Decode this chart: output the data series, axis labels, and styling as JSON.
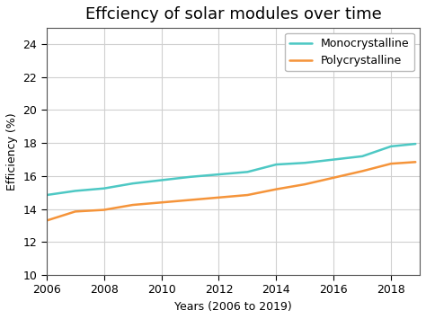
{
  "title": "Effciency of solar modules over time",
  "xlabel": "Years (2006 to 2019)",
  "ylabel": "Efficiency (%)",
  "xlim": [
    2006,
    2019
  ],
  "ylim": [
    10,
    25
  ],
  "yticks": [
    10,
    12,
    14,
    16,
    18,
    20,
    22,
    24
  ],
  "xticks": [
    2006,
    2008,
    2010,
    2012,
    2014,
    2016,
    2018
  ],
  "mono_color": "#4dc8c4",
  "poly_color": "#f5943a",
  "mono_label": "Monocrystalline",
  "poly_label": "Polycrystalline",
  "mono_x": [
    2006,
    2007,
    2008,
    2009,
    2010,
    2011,
    2012,
    2013,
    2014,
    2015,
    2016,
    2017,
    2018,
    2018.85
  ],
  "mono_y": [
    14.85,
    15.1,
    15.25,
    15.55,
    15.75,
    15.95,
    16.1,
    16.25,
    16.7,
    16.8,
    17.0,
    17.2,
    17.8,
    17.95
  ],
  "poly_x": [
    2006,
    2007,
    2008,
    2009,
    2010,
    2011,
    2012,
    2013,
    2014,
    2015,
    2016,
    2017,
    2018,
    2018.85
  ],
  "poly_y": [
    13.3,
    13.85,
    13.95,
    14.25,
    14.4,
    14.55,
    14.7,
    14.85,
    15.2,
    15.5,
    15.9,
    16.3,
    16.75,
    16.85
  ],
  "background_color": "#ffffff",
  "grid_color": "#d0d0d0",
  "linewidth": 1.8,
  "legend_fontsize": 9,
  "title_fontsize": 13,
  "axis_fontsize": 9,
  "tick_fontsize": 9
}
